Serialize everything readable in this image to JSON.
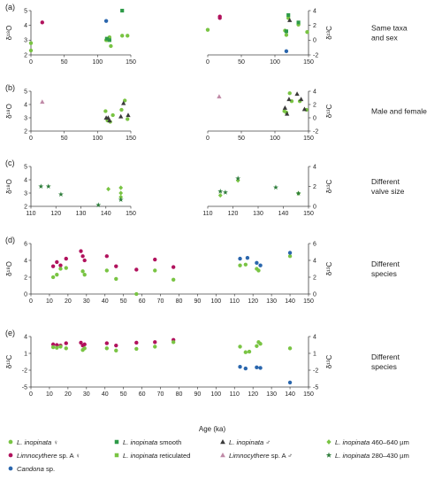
{
  "colors": {
    "lf": "#79c443",
    "lsm": "#2e9a48",
    "lm": "#3a3a3a",
    "l460": "#79c443",
    "lim": "#b1125d",
    "lret": "#79c443",
    "limm": "#c08aa7",
    "l280": "#2e7d3b",
    "can": "#2a66ad"
  },
  "legend": [
    {
      "key": "lf",
      "sym": "circle",
      "pre": "",
      "italic": "L. inopinata",
      "post": " ♀"
    },
    {
      "key": "lsm",
      "sym": "square",
      "pre": "",
      "italic": "L. inopinata",
      "post": " smooth"
    },
    {
      "key": "lm",
      "sym": "triangle",
      "pre": "",
      "italic": "L. inopinata",
      "post": " ♂"
    },
    {
      "key": "l460",
      "sym": "diamond",
      "pre": "",
      "italic": "L. inopinata",
      "post": " 460–640 µm"
    },
    {
      "key": "lim",
      "sym": "circle",
      "pre": "",
      "italic": "Limnocythere",
      "post": " sp. A ♀"
    },
    {
      "key": "lret",
      "sym": "square",
      "pre": "",
      "italic": "L. inopinata",
      "post": " reticulated"
    },
    {
      "key": "limm",
      "sym": "triangle",
      "pre": "",
      "italic": "Limnocythere",
      "post": " sp. A ♂"
    },
    {
      "key": "l280",
      "sym": "star",
      "pre": "",
      "italic": "L. inopinata",
      "post": " 280–430 µm"
    },
    {
      "key": "can",
      "sym": "circle",
      "pre": "",
      "italic": "Candona",
      "post": " sp."
    }
  ],
  "xlabel": "Age (ka)",
  "chart_data": [
    {
      "panel": "(a)",
      "type": "scatter",
      "side_label": [
        "Same taxa",
        "and sex"
      ],
      "left": {
        "xlim": [
          0,
          150
        ],
        "xticks": [
          0,
          50,
          100,
          150
        ],
        "ylim": [
          2,
          5
        ],
        "yticks": [
          2,
          3,
          4,
          5
        ],
        "ylabel": "δ¹⁸O",
        "series": [
          {
            "key": "lf",
            "points": [
              [
                0,
                2.8
              ],
              [
                0,
                2.3
              ],
              [
                113,
                3.0
              ],
              [
                114,
                3.0
              ],
              [
                118,
                3.2
              ],
              [
                120,
                2.6
              ],
              [
                137,
                3.3
              ],
              [
                145,
                3.3
              ]
            ]
          },
          {
            "key": "lsm",
            "points": [
              [
                114,
                3.1
              ],
              [
                118,
                3.0
              ],
              [
                137,
                5.0
              ]
            ]
          },
          {
            "key": "lim",
            "points": [
              [
                17,
                4.2
              ]
            ]
          },
          {
            "key": "can",
            "points": [
              [
                113,
                4.3
              ]
            ]
          }
        ]
      },
      "right": {
        "xlim": [
          0,
          150
        ],
        "xticks": [
          0,
          50,
          100,
          150
        ],
        "ylim": [
          -2,
          4
        ],
        "yticks": [
          -2,
          0,
          2,
          4
        ],
        "ylabel": "δ¹³C",
        "series": [
          {
            "key": "lf",
            "points": [
              [
                0,
                1.4
              ],
              [
                115,
                1.3
              ],
              [
                117,
                0.7
              ],
              [
                120,
                3.0
              ],
              [
                135,
                2.1
              ],
              [
                148,
                1.1
              ]
            ]
          },
          {
            "key": "lsm",
            "points": [
              [
                117,
                1.2
              ],
              [
                120,
                3.4
              ],
              [
                135,
                2.4
              ]
            ]
          },
          {
            "key": "lm",
            "points": [
              [
                122,
                2.7
              ]
            ]
          },
          {
            "key": "lim",
            "points": [
              [
                18,
                3.0
              ],
              [
                18,
                3.2
              ]
            ]
          },
          {
            "key": "can",
            "points": [
              [
                117,
                -1.5
              ]
            ]
          }
        ]
      }
    },
    {
      "panel": "(b)",
      "type": "scatter",
      "side_label": [
        "Male and female"
      ],
      "left": {
        "xlim": [
          0,
          150
        ],
        "xticks": [
          0,
          50,
          100,
          150
        ],
        "ylim": [
          2,
          5
        ],
        "yticks": [
          2,
          3,
          4,
          5
        ],
        "ylabel": "δ¹⁸O",
        "series": [
          {
            "key": "lf",
            "points": [
              [
                112,
                3.5
              ],
              [
                115,
                2.8
              ],
              [
                119,
                2.7
              ],
              [
                123,
                3.2
              ],
              [
                136,
                3.6
              ],
              [
                141,
                4.3
              ],
              [
                145,
                2.9
              ]
            ]
          },
          {
            "key": "lm",
            "points": [
              [
                113,
                3.0
              ],
              [
                116,
                3.0
              ],
              [
                118,
                2.8
              ],
              [
                135,
                3.1
              ],
              [
                139,
                4.1
              ],
              [
                146,
                3.2
              ]
            ]
          },
          {
            "key": "limm",
            "points": [
              [
                17,
                4.2
              ]
            ]
          }
        ]
      },
      "right": {
        "xlim": [
          0,
          150
        ],
        "xticks": [
          0,
          50,
          100,
          150
        ],
        "ylim": [
          -2,
          4
        ],
        "yticks": [
          -2,
          0,
          2,
          4
        ],
        "ylabel": "δ¹³C",
        "series": [
          {
            "key": "lf",
            "points": [
              [
                114,
                1.0
              ],
              [
                117,
                0.8
              ],
              [
                122,
                3.7
              ],
              [
                125,
                2.5
              ],
              [
                137,
                2.5
              ],
              [
                147,
                1.2
              ]
            ]
          },
          {
            "key": "lm",
            "points": [
              [
                115,
                1.5
              ],
              [
                118,
                0.6
              ],
              [
                121,
                2.8
              ],
              [
                133,
                3.6
              ],
              [
                139,
                2.8
              ],
              [
                144,
                1.3
              ]
            ]
          },
          {
            "key": "limm",
            "points": [
              [
                17,
                3.2
              ]
            ]
          }
        ]
      }
    },
    {
      "panel": "(c)",
      "type": "scatter",
      "side_label": [
        "Different",
        "valve size"
      ],
      "left": {
        "xlim": [
          110,
          150
        ],
        "xticks": [
          110,
          120,
          130,
          140,
          150
        ],
        "ylim": [
          2,
          5
        ],
        "yticks": [
          2,
          3,
          4,
          5
        ],
        "ylabel": "δ¹⁸O",
        "series": [
          {
            "key": "l460",
            "points": [
              [
                141,
                3.3
              ],
              [
                146,
                3.4
              ],
              [
                146,
                3.0
              ],
              [
                146,
                2.7
              ]
            ]
          },
          {
            "key": "l280",
            "points": [
              [
                114,
                3.5
              ],
              [
                117,
                3.5
              ],
              [
                122,
                2.9
              ],
              [
                137,
                2.1
              ],
              [
                146,
                2.5
              ]
            ]
          }
        ]
      },
      "right": {
        "xlim": [
          110,
          150
        ],
        "xticks": [
          110,
          120,
          130,
          140,
          150
        ],
        "ylim": [
          0,
          4
        ],
        "yticks": [
          0,
          2,
          4
        ],
        "ylabel": "δ¹³C",
        "series": [
          {
            "key": "l460",
            "points": [
              [
                115,
                1.1
              ],
              [
                122,
                2.6
              ],
              [
                146,
                1.3
              ]
            ]
          },
          {
            "key": "l280",
            "points": [
              [
                115,
                1.5
              ],
              [
                117,
                1.4
              ],
              [
                122,
                2.8
              ],
              [
                137,
                1.9
              ],
              [
                146,
                1.3
              ]
            ]
          }
        ]
      }
    },
    {
      "panel": "(d)",
      "type": "scatter",
      "side_label": [
        "Different",
        "species"
      ],
      "axis": {
        "xlim": [
          0,
          150
        ],
        "xticks": [
          0,
          10,
          20,
          30,
          40,
          50,
          60,
          70,
          80,
          90,
          100,
          110,
          120,
          130,
          140,
          150
        ],
        "ylim_left": [
          0,
          6
        ],
        "yticks_left": [
          0,
          2,
          4,
          6
        ],
        "ylabel_left": "δ¹⁸O",
        "ylim_right": [
          0,
          6
        ],
        "yticks_right": [
          0,
          2,
          4,
          6
        ],
        "ylabel_right": "δ¹³C"
      },
      "series": [
        {
          "key": "lim",
          "points": [
            [
              12,
              3.3
            ],
            [
              14,
              3.8
            ],
            [
              16,
              3.4
            ],
            [
              19,
              4.2
            ],
            [
              27,
              5.1
            ],
            [
              28,
              4.5
            ],
            [
              29,
              4.0
            ],
            [
              41,
              4.5
            ],
            [
              46,
              3.3
            ],
            [
              57,
              2.9
            ],
            [
              67,
              4.1
            ],
            [
              77,
              3.2
            ]
          ]
        },
        {
          "key": "lf",
          "points": [
            [
              12,
              2.0
            ],
            [
              14,
              2.3
            ],
            [
              16,
              3.0
            ],
            [
              19,
              3.1
            ],
            [
              28,
              2.7
            ],
            [
              29,
              2.3
            ],
            [
              41,
              2.8
            ],
            [
              46,
              1.8
            ],
            [
              57,
              0.0
            ],
            [
              67,
              2.8
            ],
            [
              77,
              1.7
            ],
            [
              113,
              3.4
            ],
            [
              116,
              3.5
            ],
            [
              122,
              3.0
            ],
            [
              123,
              2.8
            ],
            [
              140,
              4.5
            ]
          ]
        },
        {
          "key": "can",
          "points": [
            [
              113,
              4.2
            ],
            [
              117,
              4.3
            ],
            [
              122,
              3.7
            ],
            [
              124,
              3.4
            ],
            [
              140,
              4.9
            ]
          ]
        }
      ]
    },
    {
      "panel": "(e)",
      "type": "scatter",
      "side_label": [
        "Different",
        "species"
      ],
      "axis": {
        "xlim": [
          0,
          150
        ],
        "xticks": [
          0,
          10,
          20,
          30,
          40,
          50,
          60,
          70,
          80,
          90,
          100,
          110,
          120,
          130,
          140,
          150
        ],
        "ylim_left": [
          -5,
          4
        ],
        "yticks_left": [
          -5,
          -2,
          1,
          4
        ],
        "ylabel_left": "δ¹³C",
        "ylim_right": [
          -5,
          4
        ],
        "yticks_right": [
          -5,
          -2,
          1,
          4
        ],
        "ylabel_right": "δ¹³C"
      },
      "series": [
        {
          "key": "lim",
          "points": [
            [
              12,
              2.6
            ],
            [
              14,
              2.5
            ],
            [
              16,
              2.4
            ],
            [
              19,
              2.8
            ],
            [
              27,
              2.9
            ],
            [
              28,
              2.4
            ],
            [
              29,
              2.6
            ],
            [
              41,
              2.8
            ],
            [
              46,
              2.4
            ],
            [
              57,
              2.9
            ],
            [
              67,
              3.0
            ],
            [
              77,
              3.4
            ]
          ]
        },
        {
          "key": "lf",
          "points": [
            [
              12,
              2.1
            ],
            [
              14,
              2.0
            ],
            [
              16,
              2.2
            ],
            [
              19,
              1.9
            ],
            [
              28,
              1.6
            ],
            [
              29,
              1.9
            ],
            [
              41,
              1.9
            ],
            [
              46,
              1.5
            ],
            [
              57,
              1.8
            ],
            [
              67,
              2.2
            ],
            [
              77,
              3.0
            ],
            [
              113,
              2.2
            ],
            [
              116,
              1.2
            ],
            [
              118,
              1.3
            ],
            [
              122,
              2.3
            ],
            [
              123,
              3.0
            ],
            [
              124,
              2.7
            ],
            [
              140,
              1.9
            ]
          ]
        },
        {
          "key": "can",
          "points": [
            [
              113,
              -1.4
            ],
            [
              116,
              -1.7
            ],
            [
              122,
              -1.5
            ],
            [
              124,
              -1.6
            ],
            [
              140,
              -4.2
            ]
          ]
        }
      ]
    }
  ]
}
